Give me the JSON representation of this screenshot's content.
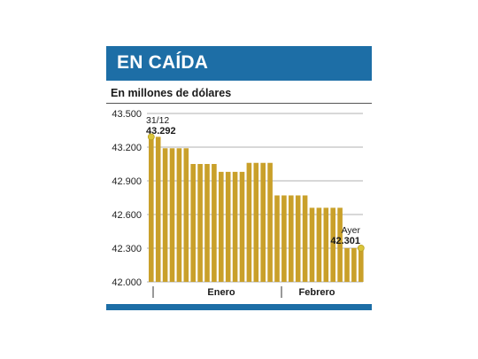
{
  "header": {
    "title": "EN CAÍDA"
  },
  "subtitle": "En millones de dólares",
  "colors": {
    "bar": "#c9a02a",
    "accent": "#1d6ea6",
    "marker": "#d9c43a",
    "grid": "#999999"
  },
  "chart_data": {
    "type": "bar",
    "title": "EN CAÍDA",
    "ylabel": "En millones de dólares",
    "xlabel": "",
    "ylim": [
      42000,
      43500
    ],
    "yticks": [
      "43.500",
      "43.200",
      "42.900",
      "42.600",
      "42.300",
      "42.000"
    ],
    "ytick_values": [
      43500,
      43200,
      42900,
      42600,
      42300,
      42000
    ],
    "grid": true,
    "months": [
      "Enero",
      "Febrero"
    ],
    "values": [
      43292,
      43292,
      43190,
      43190,
      43190,
      43190,
      43050,
      43050,
      43050,
      43050,
      42980,
      42980,
      42980,
      42980,
      43060,
      43060,
      43060,
      43060,
      42770,
      42770,
      42770,
      42770,
      42770,
      42660,
      42660,
      42660,
      42660,
      42660,
      42301,
      42301,
      42301
    ],
    "annotations": {
      "start": {
        "label": "31/12",
        "value": "43.292"
      },
      "end": {
        "label": "Ayer",
        "value": "42.301"
      }
    }
  }
}
